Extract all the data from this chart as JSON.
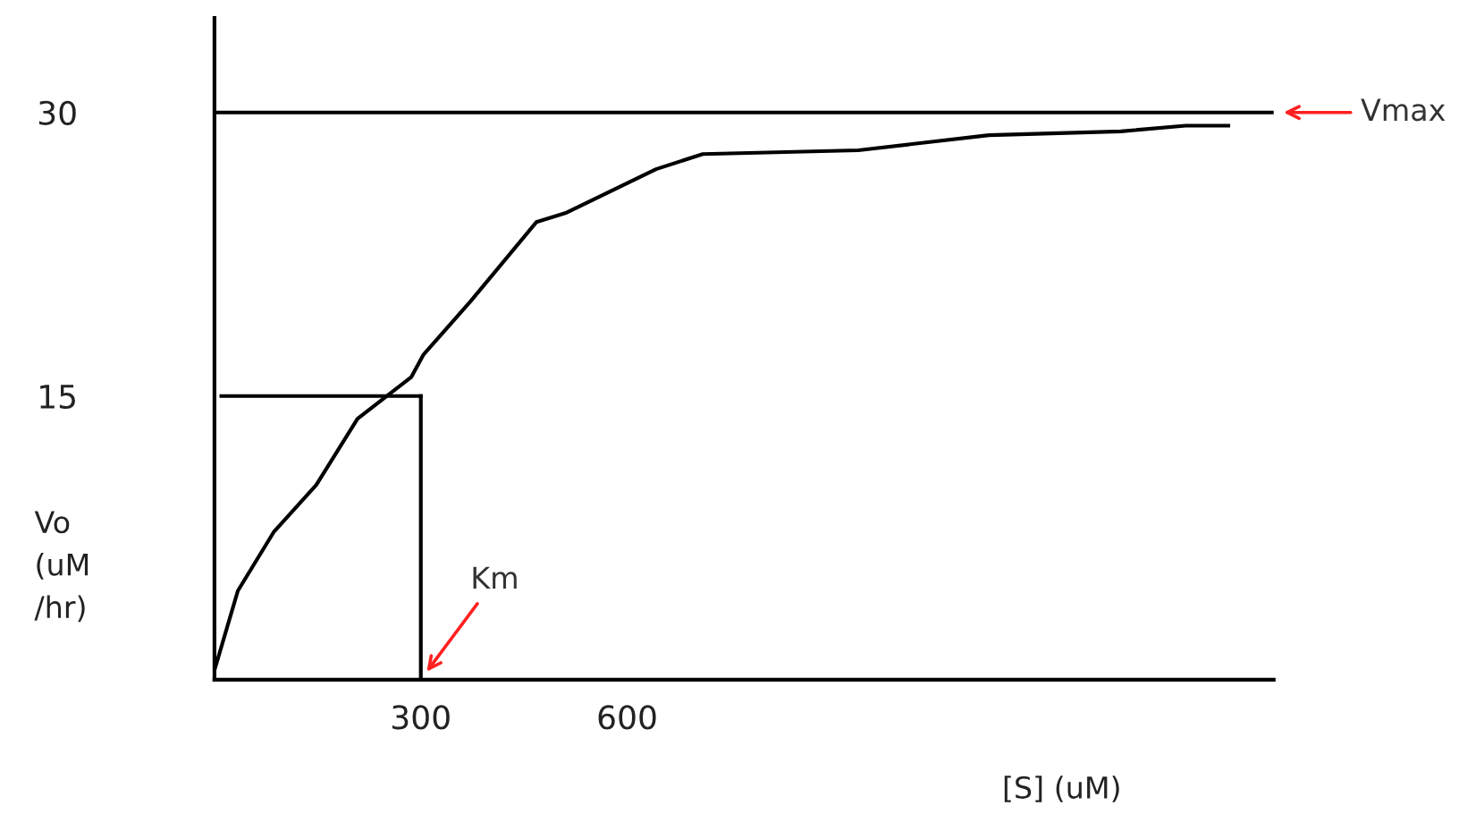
{
  "chart_data": {
    "type": "line",
    "xlabel": "[S] (uM)",
    "ylabel": "Vo\n(uM\n/hr)",
    "xlim": [
      0,
      1540
    ],
    "ylim": [
      0,
      35
    ],
    "xticks": [
      300,
      600
    ],
    "yticks": [
      15,
      30
    ],
    "grid": false,
    "legend": false,
    "marker": "none",
    "line_style": "solid",
    "series": [
      {
        "color": "#000000",
        "x": [
          0,
          34,
          86,
          148,
          208,
          286,
          304,
          372,
          468,
          512,
          642,
          710,
          936,
          1126,
          1318,
          1412,
          1474
        ],
        "values": [
          0.5,
          4.7,
          7.8,
          10.3,
          13.8,
          16.0,
          17.2,
          20.0,
          24.2,
          24.7,
          27.0,
          27.8,
          28.0,
          28.8,
          29.0,
          29.3,
          29.3
        ]
      },
      {
        "color": "#000000",
        "x": [
          10,
          300
        ],
        "values": [
          15,
          15
        ]
      },
      {
        "color": "#000000",
        "x": [
          300,
          300
        ],
        "values": [
          0,
          15
        ]
      }
    ],
    "ref_lines": [
      {
        "axis": "y",
        "value": 30,
        "color": "#000000"
      }
    ],
    "annotations": [
      {
        "text": "Km",
        "x": 300,
        "y": 0
      },
      {
        "text": "Vmax",
        "x": 1540,
        "y": 30
      }
    ]
  }
}
